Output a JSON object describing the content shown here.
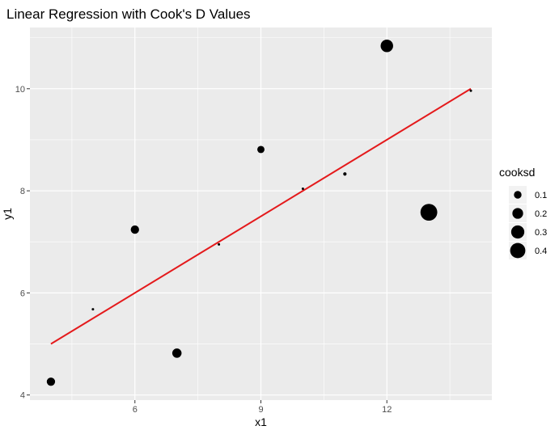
{
  "chart_data": {
    "type": "scatter",
    "title": "Linear Regression with Cook's D Values",
    "xlabel": "x1",
    "ylabel": "y1",
    "xlim": [
      3.5,
      14.5
    ],
    "ylim": [
      3.9,
      11.2
    ],
    "x_ticks": [
      6,
      9,
      12
    ],
    "y_ticks": [
      4,
      6,
      8,
      10
    ],
    "x_minor_ticks": [
      4.5,
      7.5,
      10.5,
      13.5
    ],
    "y_minor_ticks": [
      5,
      7,
      9,
      11
    ],
    "grid": true,
    "panel_background": "#ebebeb",
    "point_color": "#000000",
    "line_color": "#e41a1c",
    "points": [
      {
        "x": 4,
        "y": 4.26,
        "cooksd": 0.12
      },
      {
        "x": 5,
        "y": 5.68,
        "cooksd": 0.01
      },
      {
        "x": 6,
        "y": 7.24,
        "cooksd": 0.12
      },
      {
        "x": 7,
        "y": 4.82,
        "cooksd": 0.15
      },
      {
        "x": 8,
        "y": 6.95,
        "cooksd": 0.0
      },
      {
        "x": 9,
        "y": 8.81,
        "cooksd": 0.09
      },
      {
        "x": 10,
        "y": 8.04,
        "cooksd": 0.0
      },
      {
        "x": 11,
        "y": 8.33,
        "cooksd": 0.02
      },
      {
        "x": 12,
        "y": 10.84,
        "cooksd": 0.27
      },
      {
        "x": 13,
        "y": 7.58,
        "cooksd": 0.49
      },
      {
        "x": 14,
        "y": 9.96,
        "cooksd": 0.0
      }
    ],
    "regression_line": {
      "x": [
        4,
        14
      ],
      "y": [
        5.0,
        10.0
      ]
    },
    "legend": {
      "title": "cooksd",
      "position": "right",
      "entries": [
        {
          "label": "0.1",
          "value": 0.1
        },
        {
          "label": "0.2",
          "value": 0.2
        },
        {
          "label": "0.3",
          "value": 0.3
        },
        {
          "label": "0.4",
          "value": 0.4
        }
      ]
    }
  }
}
